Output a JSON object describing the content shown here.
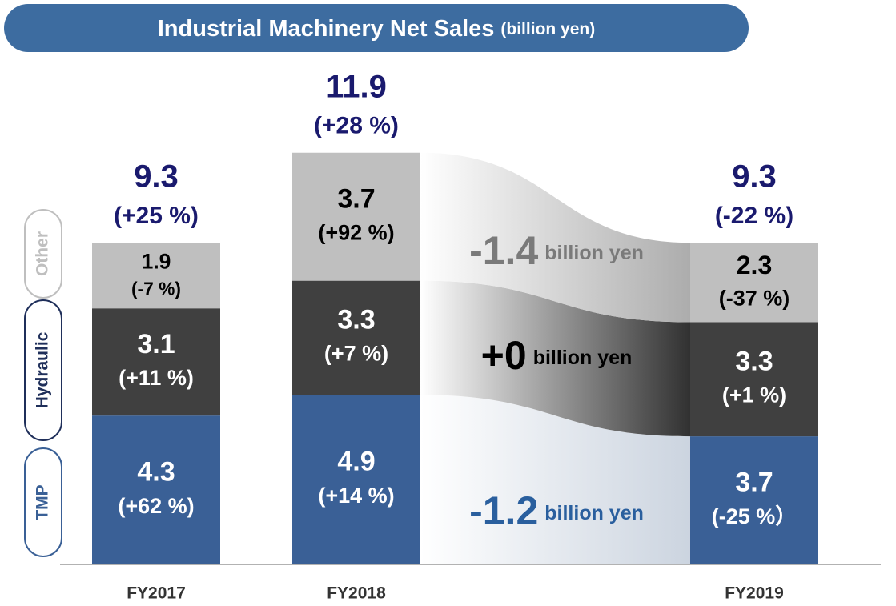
{
  "chart_data": {
    "type": "bar",
    "stacked": true,
    "title": "Industrial Machinery Net Sales",
    "subtitle": "(billion yen)",
    "categories": [
      "FY2017",
      "FY2018",
      "FY2019"
    ],
    "series": [
      {
        "name": "TMP",
        "color": "#3a6096",
        "values": [
          4.3,
          4.9,
          3.7
        ],
        "change_labels": [
          "(+62 %)",
          "(+14 %)",
          "(-25 %）"
        ]
      },
      {
        "name": "Hydraulic",
        "color": "#404040",
        "values": [
          3.1,
          3.3,
          3.3
        ],
        "change_labels": [
          "(+11 %)",
          "(+7 %)",
          "(+1 %)"
        ]
      },
      {
        "name": "Other",
        "color": "#bfbfbf",
        "values": [
          1.9,
          3.7,
          2.3
        ],
        "change_labels": [
          "(-7 %)",
          "(+92 %)",
          "(-37 %)"
        ]
      }
    ],
    "totals": [
      9.3,
      11.9,
      9.3
    ],
    "total_changes": [
      "(+25 %)",
      "(+28 %)",
      "(-22 %)"
    ],
    "differences": {
      "values": [
        -1.2,
        0,
        -1.4
      ],
      "value_labels": [
        "-1.2",
        "+0",
        "-1.4"
      ],
      "unit": "billion yen"
    },
    "ylim": [
      0,
      14
    ]
  }
}
